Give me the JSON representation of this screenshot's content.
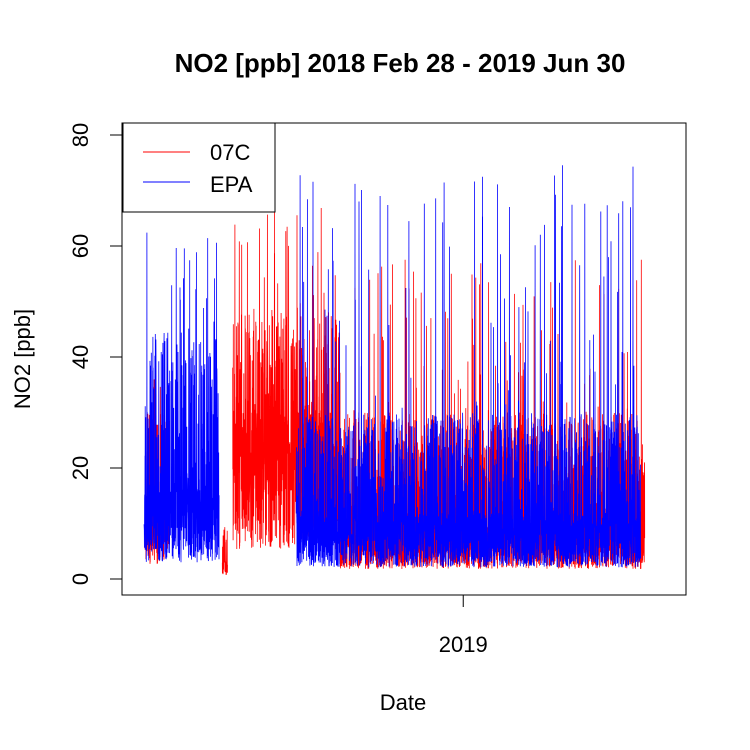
{
  "chart_data": {
    "type": "line",
    "title": "NO2 [ppb] 2018 Feb 28 - 2019 Jun 30",
    "xlabel": "Date",
    "ylabel": "NO2 [ppb]",
    "xlim": [
      "2018-02-28",
      "2019-06-30"
    ],
    "ylim": [
      0,
      80
    ],
    "yticks": [
      0,
      20,
      40,
      60,
      80
    ],
    "xticks": [
      {
        "date": "2019-01-01",
        "label": "2019"
      }
    ],
    "legend_position": "top-left",
    "series": [
      {
        "name": "07C",
        "color": "#ff0000",
        "description": "hourly NO2 at site 07C",
        "x_start": "2018-03-02",
        "x_end": "2019-06-24",
        "segments": [
          {
            "start": "2018-03-02",
            "end": "2018-03-25",
            "base": 9,
            "peak": 30,
            "spike": 40
          },
          {
            "start": "2018-05-15",
            "end": "2018-05-20",
            "base": 2,
            "peak": 8,
            "spike": 10
          },
          {
            "start": "2018-05-25",
            "end": "2018-09-05",
            "base": 18,
            "peak": 48,
            "spike": 67
          },
          {
            "start": "2018-09-05",
            "end": "2019-06-24",
            "base": 6,
            "peak": 30,
            "spike": 58
          }
        ]
      },
      {
        "name": "EPA",
        "color": "#0000ff",
        "description": "hourly NO2 at EPA reference station",
        "x_start": "2018-03-01",
        "x_end": "2019-06-20",
        "segments": [
          {
            "start": "2018-03-01",
            "end": "2018-05-12",
            "base": 10,
            "peak": 45,
            "spike": 66
          },
          {
            "start": "2018-07-25",
            "end": "2019-06-20",
            "base": 7,
            "peak": 30,
            "spike": 75
          }
        ]
      }
    ]
  }
}
